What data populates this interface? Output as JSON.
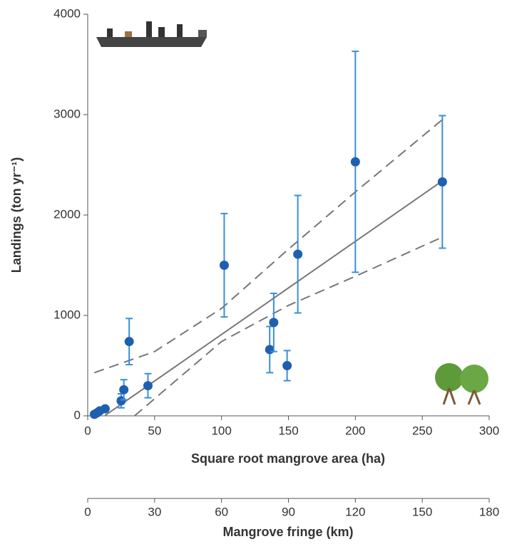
{
  "chart_data": {
    "type": "scatter",
    "x_label": "Square root mangrove area (ha)",
    "y_label": "Landings (ton yr⁻¹)",
    "x2_label": "Mangrove fringe (km)",
    "xlim": [
      0,
      300
    ],
    "xticks": [
      0,
      50,
      100,
      150,
      200,
      250,
      300
    ],
    "ylim": [
      0,
      4000
    ],
    "yticks": [
      0,
      1000,
      2000,
      3000,
      4000
    ],
    "x2lim": [
      0,
      180
    ],
    "x2ticks": [
      0,
      30,
      60,
      90,
      120,
      150,
      180
    ],
    "series": [
      {
        "color": "#1f5fb0",
        "error_color": "#3a8fd8",
        "x": [
          5,
          7,
          9,
          13,
          25,
          27,
          31,
          45,
          102,
          136,
          139,
          149,
          157,
          200,
          265
        ],
        "values": [
          15,
          30,
          50,
          70,
          150,
          260,
          740,
          300,
          1500,
          660,
          930,
          500,
          1610,
          2530,
          2330
        ],
        "errors": [
          0,
          0,
          0,
          0,
          70,
          100,
          230,
          120,
          515,
          230,
          290,
          150,
          585,
          1100,
          660
        ]
      }
    ],
    "fit": {
      "color": "#777777",
      "x": [
        13,
        265
      ],
      "values": [
        4,
        2340
      ]
    },
    "confidence_upper": {
      "color": "#777777",
      "x": [
        5,
        50,
        100,
        150,
        200,
        265
      ],
      "values": [
        430,
        640,
        1070,
        1660,
        2230,
        2950
      ]
    },
    "confidence_lower": {
      "color": "#777777",
      "x": [
        35,
        100,
        150,
        200,
        265
      ],
      "values": [
        0,
        740,
        1100,
        1390,
        1780
      ]
    }
  }
}
